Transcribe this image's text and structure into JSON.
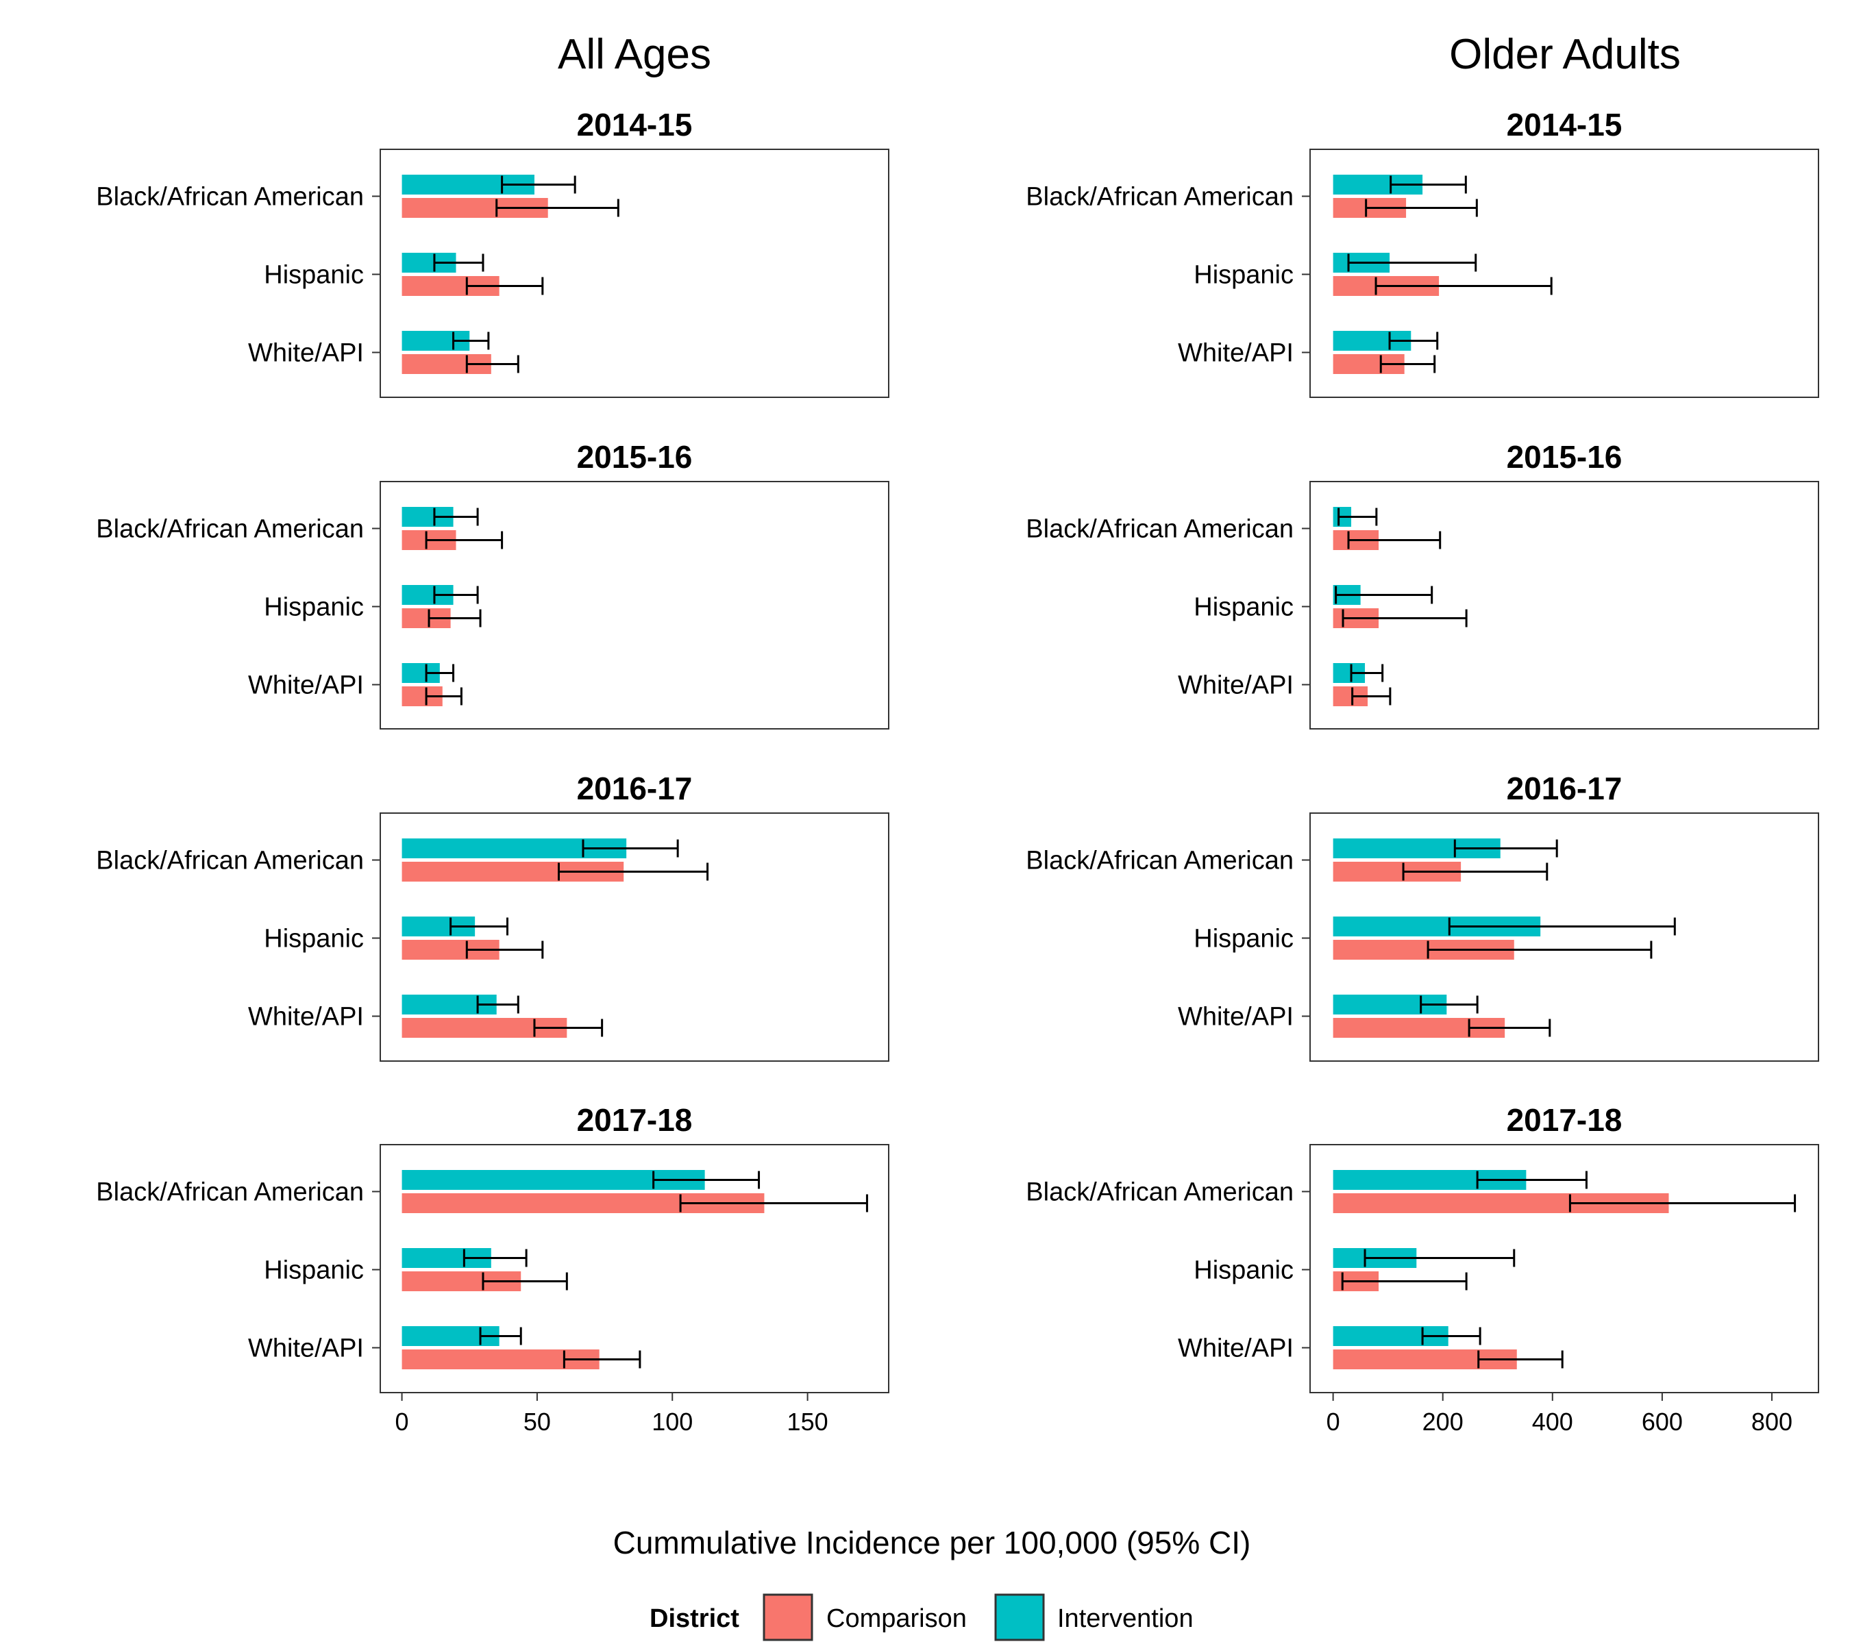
{
  "chart_data": {
    "type": "bar",
    "orientation": "horizontal",
    "xlabel": "Cummulative Incidence per 100,000 (95% CI)",
    "categories": [
      "Black/African American",
      "Hispanic",
      "White/API"
    ],
    "legend": {
      "title": "District",
      "placement": "bottom",
      "entries": [
        {
          "name": "Comparison",
          "color": "#F8766D"
        },
        {
          "name": "Intervention",
          "color": "#00BFC4"
        }
      ]
    },
    "columns": [
      {
        "title": "All Ages",
        "xlim": [
          -8,
          180
        ],
        "xticks": [
          0,
          50,
          100,
          150
        ],
        "panels": [
          {
            "title": "2014-15",
            "comparison": [
              {
                "value": 54,
                "lo": 35,
                "hi": 80
              },
              {
                "value": 36,
                "lo": 24,
                "hi": 52
              },
              {
                "value": 33,
                "lo": 24,
                "hi": 43
              }
            ],
            "intervention": [
              {
                "value": 49,
                "lo": 37,
                "hi": 64
              },
              {
                "value": 20,
                "lo": 12,
                "hi": 30
              },
              {
                "value": 25,
                "lo": 19,
                "hi": 32
              }
            ]
          },
          {
            "title": "2015-16",
            "comparison": [
              {
                "value": 20,
                "lo": 9,
                "hi": 37
              },
              {
                "value": 18,
                "lo": 10,
                "hi": 29
              },
              {
                "value": 15,
                "lo": 9,
                "hi": 22
              }
            ],
            "intervention": [
              {
                "value": 19,
                "lo": 12,
                "hi": 28
              },
              {
                "value": 19,
                "lo": 12,
                "hi": 28
              },
              {
                "value": 14,
                "lo": 9,
                "hi": 19
              }
            ]
          },
          {
            "title": "2016-17",
            "comparison": [
              {
                "value": 82,
                "lo": 58,
                "hi": 113
              },
              {
                "value": 36,
                "lo": 24,
                "hi": 52
              },
              {
                "value": 61,
                "lo": 49,
                "hi": 74
              }
            ],
            "intervention": [
              {
                "value": 83,
                "lo": 67,
                "hi": 102
              },
              {
                "value": 27,
                "lo": 18,
                "hi": 39
              },
              {
                "value": 35,
                "lo": 28,
                "hi": 43
              }
            ]
          },
          {
            "title": "2017-18",
            "comparison": [
              {
                "value": 134,
                "lo": 103,
                "hi": 172
              },
              {
                "value": 44,
                "lo": 30,
                "hi": 61
              },
              {
                "value": 73,
                "lo": 60,
                "hi": 88
              }
            ],
            "intervention": [
              {
                "value": 112,
                "lo": 93,
                "hi": 132
              },
              {
                "value": 33,
                "lo": 23,
                "hi": 46
              },
              {
                "value": 36,
                "lo": 29,
                "hi": 44
              }
            ]
          }
        ]
      },
      {
        "title": "Older Adults",
        "xlim": [
          -42,
          885
        ],
        "xticks": [
          0,
          200,
          400,
          600,
          800
        ],
        "panels": [
          {
            "title": "2014-15",
            "comparison": [
              {
                "value": 133,
                "lo": 60,
                "hi": 262
              },
              {
                "value": 193,
                "lo": 78,
                "hi": 398
              },
              {
                "value": 130,
                "lo": 87,
                "hi": 185
              }
            ],
            "intervention": [
              {
                "value": 163,
                "lo": 105,
                "hi": 242
              },
              {
                "value": 103,
                "lo": 28,
                "hi": 260
              },
              {
                "value": 142,
                "lo": 103,
                "hi": 190
              }
            ]
          },
          {
            "title": "2015-16",
            "comparison": [
              {
                "value": 83,
                "lo": 28,
                "hi": 195
              },
              {
                "value": 83,
                "lo": 18,
                "hi": 243
              },
              {
                "value": 63,
                "lo": 35,
                "hi": 104
              }
            ],
            "intervention": [
              {
                "value": 33,
                "lo": 10,
                "hi": 79
              },
              {
                "value": 50,
                "lo": 5,
                "hi": 180
              },
              {
                "value": 58,
                "lo": 33,
                "hi": 90
              }
            ]
          },
          {
            "title": "2016-17",
            "comparison": [
              {
                "value": 233,
                "lo": 128,
                "hi": 390
              },
              {
                "value": 330,
                "lo": 173,
                "hi": 580
              },
              {
                "value": 313,
                "lo": 248,
                "hi": 395
              }
            ],
            "intervention": [
              {
                "value": 305,
                "lo": 222,
                "hi": 408
              },
              {
                "value": 378,
                "lo": 212,
                "hi": 623
              },
              {
                "value": 207,
                "lo": 160,
                "hi": 263
              }
            ]
          },
          {
            "title": "2017-18",
            "comparison": [
              {
                "value": 612,
                "lo": 432,
                "hi": 842
              },
              {
                "value": 83,
                "lo": 17,
                "hi": 243
              },
              {
                "value": 335,
                "lo": 265,
                "hi": 418
              }
            ],
            "intervention": [
              {
                "value": 352,
                "lo": 263,
                "hi": 462
              },
              {
                "value": 152,
                "lo": 58,
                "hi": 330
              },
              {
                "value": 210,
                "lo": 163,
                "hi": 268
              }
            ]
          }
        ]
      }
    ]
  }
}
